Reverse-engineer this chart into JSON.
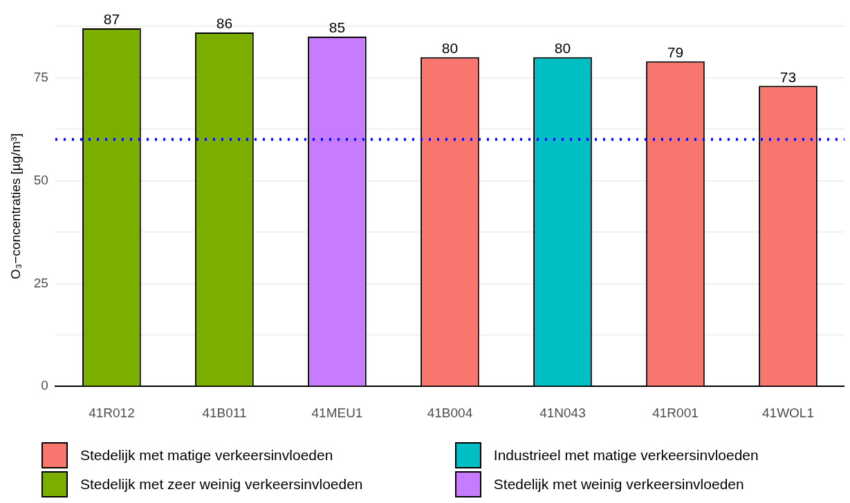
{
  "chart_data": {
    "type": "bar",
    "ylabel": "O₃−concentraties [µg/m³]",
    "categories": [
      "41R012",
      "41B011",
      "41MEU1",
      "41B004",
      "41N043",
      "41R001",
      "41WOL1"
    ],
    "series": [
      {
        "name": "Stedelijk met matige verkeersinvloeden",
        "color": "#f8766d",
        "values": [
          null,
          null,
          null,
          80,
          null,
          79,
          73
        ]
      },
      {
        "name": "Stedelijk met zeer weinig verkeersinvloeden",
        "color": "#7cae00",
        "values": [
          87,
          86,
          null,
          null,
          null,
          null,
          null
        ]
      },
      {
        "name": "Industrieel met matige verkeersinvloeden",
        "color": "#00bfc4",
        "values": [
          null,
          null,
          null,
          null,
          80,
          null,
          null
        ]
      },
      {
        "name": "Stedelijk met weinig verkeersinvloeden",
        "color": "#c77cff",
        "values": [
          null,
          null,
          85,
          null,
          null,
          null,
          null
        ]
      }
    ],
    "stacked": true,
    "data_labels": true,
    "ylim": [
      0,
      87.5
    ],
    "yticks": [
      0,
      {
        "value": 12.5,
        "label": null
      },
      25,
      {
        "value": 37.5,
        "label": null
      },
      50,
      {
        "value": 62.5,
        "label": null
      },
      75,
      {
        "value": 87.5,
        "label": null
      }
    ],
    "grid": "y",
    "legend": "bottom",
    "ref_lines": [
      {
        "axis": "y",
        "value": 60,
        "color": "#0000ff",
        "line_style": "dotted"
      }
    ]
  }
}
